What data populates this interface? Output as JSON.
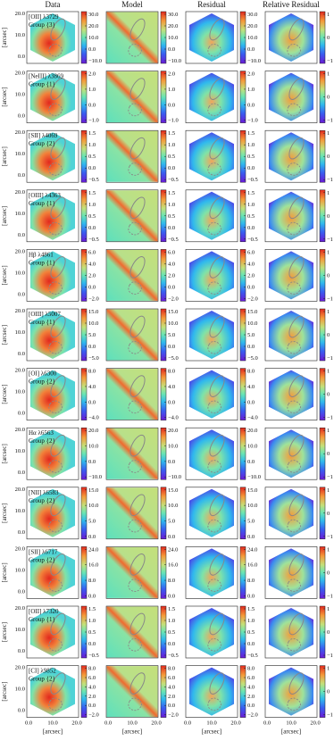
{
  "column_titles": [
    "Data",
    "Model",
    "Residual",
    "Relative Residual"
  ],
  "y_axis_label": "[arcsec]",
  "y_ticks": [
    "0.0",
    "10.0",
    "20.0"
  ],
  "x_ticks": [
    "0.0",
    "10.0",
    "20.0"
  ],
  "x_axis_label": "[arcsec]",
  "relative_ticks": [
    "1",
    "0",
    "−1"
  ],
  "rows": [
    {
      "line": "[OII] λ3729",
      "group": "Group {3}",
      "colorbar_ticks": [
        "30.0",
        "20.0",
        "10.0",
        "0.0",
        "−10.0"
      ]
    },
    {
      "line": "[NeIII] λ3869",
      "group": "Group {1}",
      "colorbar_ticks": [
        "2.0",
        "1.0",
        "0.0",
        "−1.0"
      ]
    },
    {
      "line": "[SII] λ4069",
      "group": "Group {2}",
      "colorbar_ticks": [
        "1.5",
        "1.0",
        "0.5",
        "0.0",
        "−0.5"
      ]
    },
    {
      "line": "[OIII] λ4363",
      "group": "Group {1}",
      "colorbar_ticks": [
        "1.5",
        "1.0",
        "0.5",
        "0.0",
        "−0.5"
      ]
    },
    {
      "line": "Hβ λ4861",
      "group": "Group {1}",
      "colorbar_ticks": [
        "6.0",
        "4.0",
        "2.0",
        "0.0",
        "−2.0"
      ]
    },
    {
      "line": "[OIII] λ5007",
      "group": "Group {1}",
      "colorbar_ticks": [
        "15.0",
        "10.0",
        "5.0",
        "0.0",
        "−5.0"
      ]
    },
    {
      "line": "[OI] λ6300",
      "group": "Group {2}",
      "colorbar_ticks": [
        "8.0",
        "4.0",
        "0.0",
        "−4.0"
      ]
    },
    {
      "line": "Hα λ6563",
      "group": "Group {2}",
      "colorbar_ticks": [
        "20.0",
        "10.0",
        "0.0",
        "−10.0"
      ]
    },
    {
      "line": "[NII] λ6583",
      "group": "Group {2}",
      "colorbar_ticks": [
        "15.0",
        "10.0",
        "5.0",
        "0.0"
      ]
    },
    {
      "line": "[SII] λ6717",
      "group": "Group {2}",
      "colorbar_ticks": [
        "24.0",
        "16.0",
        "8.0",
        "0.0"
      ]
    },
    {
      "line": "[OII] λ7320",
      "group": "Group {1}",
      "colorbar_ticks": [
        "1.5",
        "1.0",
        "0.5",
        "0.0",
        "−0.5"
      ]
    },
    {
      "line": "[CI] λ9852",
      "group": "Group {2}",
      "colorbar_ticks": [
        "8.0",
        "6.0",
        "4.0",
        "2.0",
        "0.0",
        "−2.0"
      ]
    }
  ]
}
